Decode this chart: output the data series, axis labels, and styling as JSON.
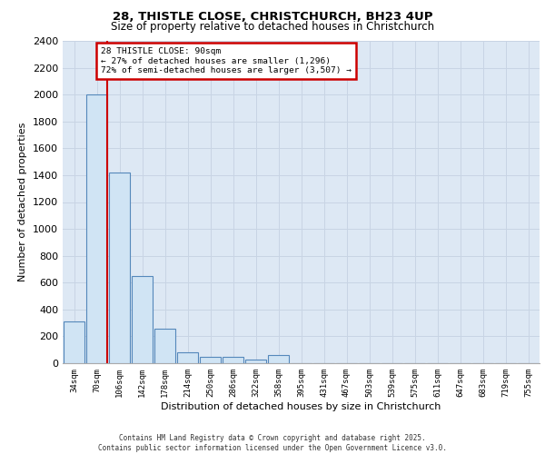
{
  "title1": "28, THISTLE CLOSE, CHRISTCHURCH, BH23 4UP",
  "title2": "Size of property relative to detached houses in Christchurch",
  "xlabel": "Distribution of detached houses by size in Christchurch",
  "ylabel": "Number of detached properties",
  "bar_labels": [
    "34sqm",
    "70sqm",
    "106sqm",
    "142sqm",
    "178sqm",
    "214sqm",
    "250sqm",
    "286sqm",
    "322sqm",
    "358sqm",
    "395sqm",
    "431sqm",
    "467sqm",
    "503sqm",
    "539sqm",
    "575sqm",
    "611sqm",
    "647sqm",
    "683sqm",
    "719sqm",
    "755sqm"
  ],
  "bar_values": [
    310,
    2000,
    1420,
    650,
    255,
    80,
    50,
    45,
    30,
    60,
    0,
    0,
    0,
    0,
    0,
    0,
    0,
    0,
    0,
    0,
    0
  ],
  "bar_color": "#d0e4f4",
  "bar_edge_color": "#5588bb",
  "vline_color": "#cc0000",
  "ylim": [
    0,
    2400
  ],
  "yticks": [
    0,
    200,
    400,
    600,
    800,
    1000,
    1200,
    1400,
    1600,
    1800,
    2000,
    2200,
    2400
  ],
  "annotation_title": "28 THISTLE CLOSE: 90sqm",
  "annotation_line1": "← 27% of detached houses are smaller (1,296)",
  "annotation_line2": "72% of semi-detached houses are larger (3,507) →",
  "annotation_box_color": "#cc0000",
  "grid_color": "#c8d4e4",
  "bg_color": "#dde8f4",
  "footer1": "Contains HM Land Registry data © Crown copyright and database right 2025.",
  "footer2": "Contains public sector information licensed under the Open Government Licence v3.0."
}
